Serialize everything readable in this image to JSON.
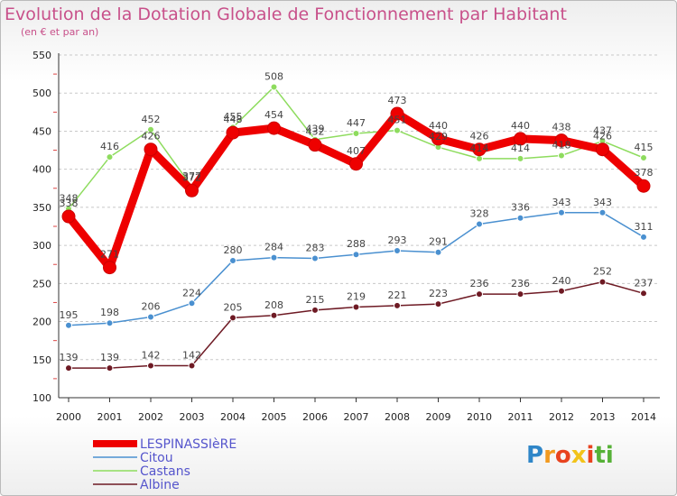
{
  "chart_data": {
    "type": "line",
    "title": "Evolution de la Dotation Globale de Fonctionnement par Habitant",
    "subtitle": "(en € et par an)",
    "xlabel": "",
    "ylabel": "",
    "ylim": [
      100,
      550
    ],
    "yticks": [
      100,
      150,
      200,
      250,
      300,
      350,
      400,
      450,
      500,
      550
    ],
    "categories": [
      "2000",
      "2001",
      "2002",
      "2003",
      "2004",
      "2005",
      "2006",
      "2007",
      "2008",
      "2009",
      "2010",
      "2011",
      "2012",
      "2013",
      "2014"
    ],
    "grid": "horizontal dashed",
    "legend": "bottom-left",
    "series": [
      {
        "name": "LESPINASSIèRE",
        "color": "#ee0000",
        "values": [
          338,
          271,
          426,
          372,
          448,
          454,
          432,
          407,
          473,
          440,
          426,
          440,
          438,
          426,
          378
        ]
      },
      {
        "name": "Citou",
        "color": "#4a90d0",
        "values": [
          195,
          198,
          206,
          224,
          280,
          284,
          283,
          288,
          293,
          291,
          328,
          336,
          343,
          343,
          311
        ]
      },
      {
        "name": "Castans",
        "color": "#8edc5e",
        "values": [
          348,
          416,
          452,
          377,
          455,
          508,
          439,
          447,
          451,
          429,
          414,
          414,
          418,
          437,
          415
        ]
      },
      {
        "name": "Albine",
        "color": "#6e1a24",
        "values": [
          139,
          139,
          142,
          142,
          205,
          208,
          215,
          219,
          221,
          223,
          236,
          236,
          240,
          252,
          237
        ]
      }
    ]
  },
  "logo": {
    "letters": [
      "P",
      "r",
      "o",
      "x",
      "i",
      "ti"
    ]
  }
}
